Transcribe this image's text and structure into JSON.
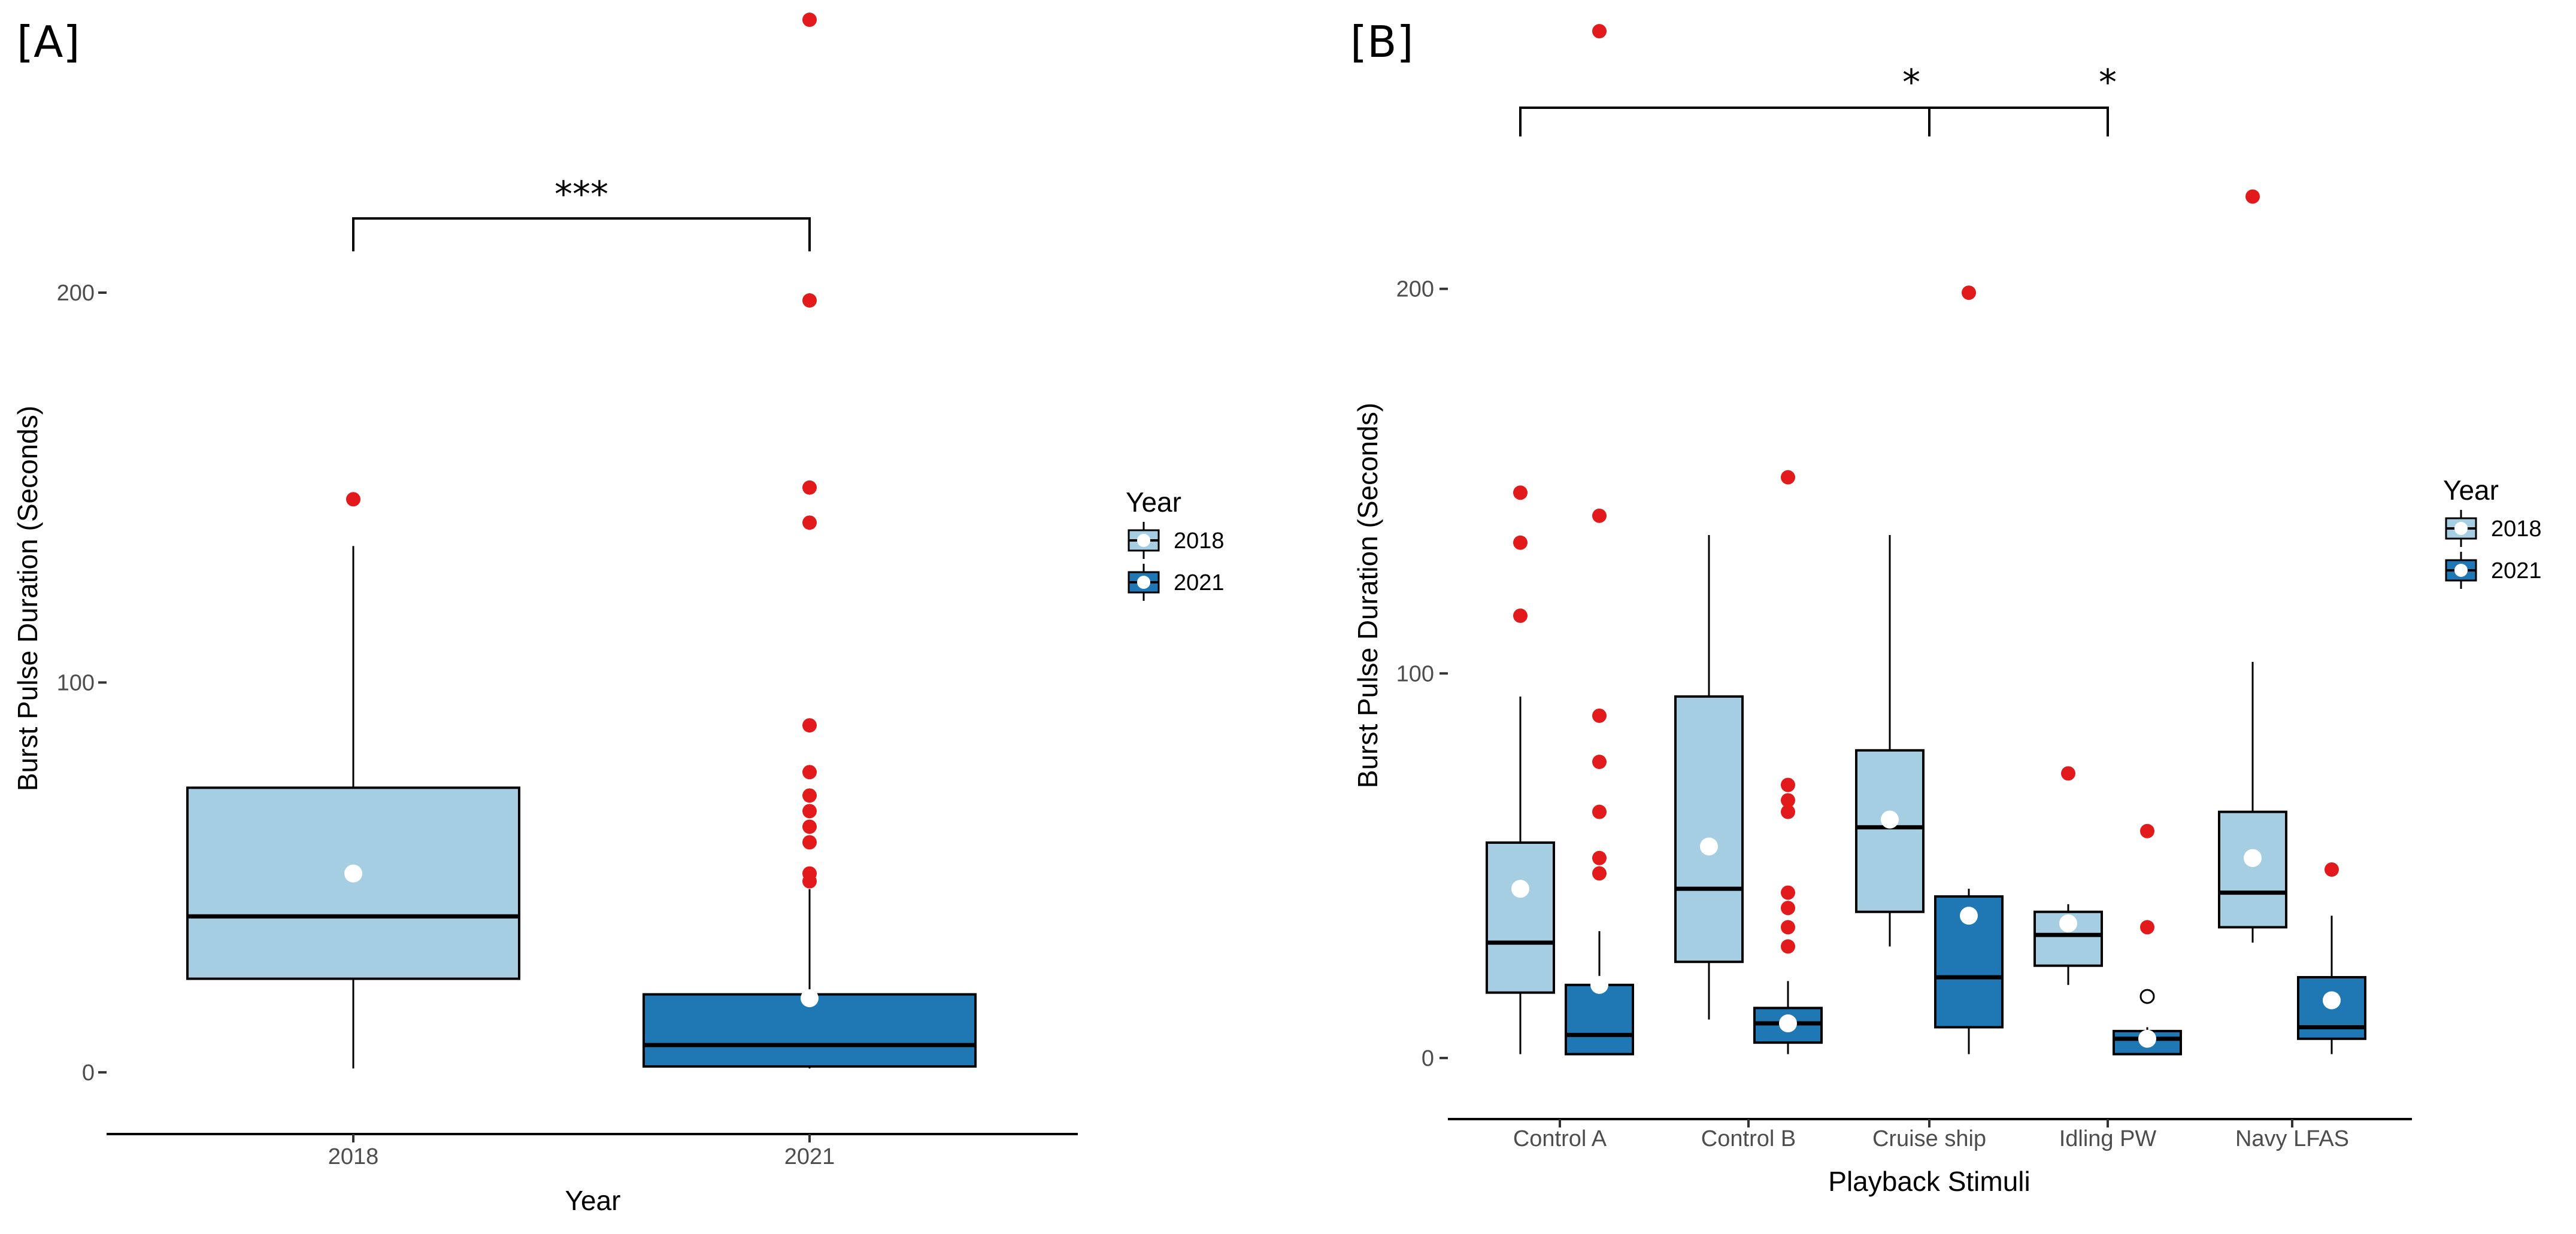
{
  "colors": {
    "c2018": "#a6cee3",
    "c2021": "#1f78b4",
    "outlier": "#e31a1c",
    "mean": "#ffffff"
  },
  "chart_data": [
    {
      "panel": "[A]",
      "type": "boxplot",
      "xlabel": "Year",
      "ylabel": "Burst Pulse Duration (Seconds)",
      "ylim": [
        -12,
        272
      ],
      "yticks": [
        0,
        100,
        200
      ],
      "categories": [
        "2018",
        "2021"
      ],
      "legend": {
        "title": "Year",
        "entries": [
          "2018",
          "2021"
        ],
        "position": "right"
      },
      "significance": [
        {
          "from": "2018",
          "to": "2021",
          "label": "***"
        }
      ],
      "boxes": [
        {
          "category": "2018",
          "series": "2018",
          "min": 1,
          "q1": 24,
          "median": 40,
          "q3": 73,
          "max": 135,
          "mean": 51,
          "outliers": [
            147
          ]
        },
        {
          "category": "2021",
          "series": "2021",
          "min": 1,
          "q1": 1.5,
          "median": 7,
          "q3": 20,
          "max": 47,
          "mean": 19,
          "outliers": [
            270,
            198,
            150,
            141,
            89,
            77,
            71,
            67,
            63,
            59,
            51,
            49
          ]
        }
      ]
    },
    {
      "panel": "[B]",
      "type": "boxplot",
      "xlabel": "Playback Stimuli",
      "ylabel": "Burst Pulse Duration (Seconds)",
      "ylim": [
        -12,
        272
      ],
      "yticks": [
        0,
        100,
        200
      ],
      "categories": [
        "Control A",
        "Control B",
        "Cruise ship",
        "Idling PW",
        "Navy LFAS"
      ],
      "legend": {
        "title": "Year",
        "entries": [
          "2018",
          "2021"
        ],
        "position": "right"
      },
      "significance": [
        {
          "from": "Control A",
          "to": "Cruise ship",
          "label": "*"
        },
        {
          "from": "Cruise ship",
          "to": "Idling PW",
          "label": "*"
        }
      ],
      "boxes": [
        {
          "category": "Control A",
          "series": "2018",
          "min": 1,
          "q1": 17,
          "median": 30,
          "q3": 56,
          "max": 94,
          "mean": 44,
          "outliers": [
            147,
            134,
            115
          ]
        },
        {
          "category": "Control A",
          "series": "2021",
          "min": 1,
          "q1": 1,
          "median": 6,
          "q3": 19,
          "max": 33,
          "mean": 19,
          "outliers": [
            267,
            141,
            89,
            77,
            64,
            52,
            48
          ]
        },
        {
          "category": "Control B",
          "series": "2018",
          "min": 10,
          "q1": 25,
          "median": 44,
          "q3": 94,
          "max": 136,
          "mean": 55,
          "outliers": []
        },
        {
          "category": "Control B",
          "series": "2021",
          "min": 1,
          "q1": 4,
          "median": 9,
          "q3": 13,
          "max": 20,
          "mean": 9,
          "outliers": [
            151,
            71,
            67,
            64,
            43,
            39,
            34,
            29
          ]
        },
        {
          "category": "Cruise ship",
          "series": "2018",
          "min": 29,
          "q1": 38,
          "median": 60,
          "q3": 80,
          "max": 136,
          "mean": 62,
          "outliers": []
        },
        {
          "category": "Cruise ship",
          "series": "2021",
          "min": 1,
          "q1": 8,
          "median": 21,
          "q3": 42,
          "max": 44,
          "mean": 37,
          "outliers": [
            199
          ]
        },
        {
          "category": "Idling PW",
          "series": "2018",
          "min": 19,
          "q1": 24,
          "median": 32,
          "q3": 38,
          "max": 40,
          "mean": 35,
          "outliers": [
            74
          ]
        },
        {
          "category": "Idling PW",
          "series": "2021",
          "min": 1,
          "q1": 1,
          "median": 5,
          "q3": 7,
          "max": 8,
          "mean": 5,
          "outliers": [
            59,
            34,
            16
          ]
        },
        {
          "category": "Navy LFAS",
          "series": "2018",
          "min": 30,
          "q1": 34,
          "median": 43,
          "q3": 64,
          "max": 103,
          "mean": 52,
          "outliers": [
            224
          ]
        },
        {
          "category": "Navy LFAS",
          "series": "2021",
          "min": 1,
          "q1": 5,
          "median": 8,
          "q3": 21,
          "max": 37,
          "mean": 15,
          "outliers": [
            49
          ]
        }
      ]
    }
  ]
}
